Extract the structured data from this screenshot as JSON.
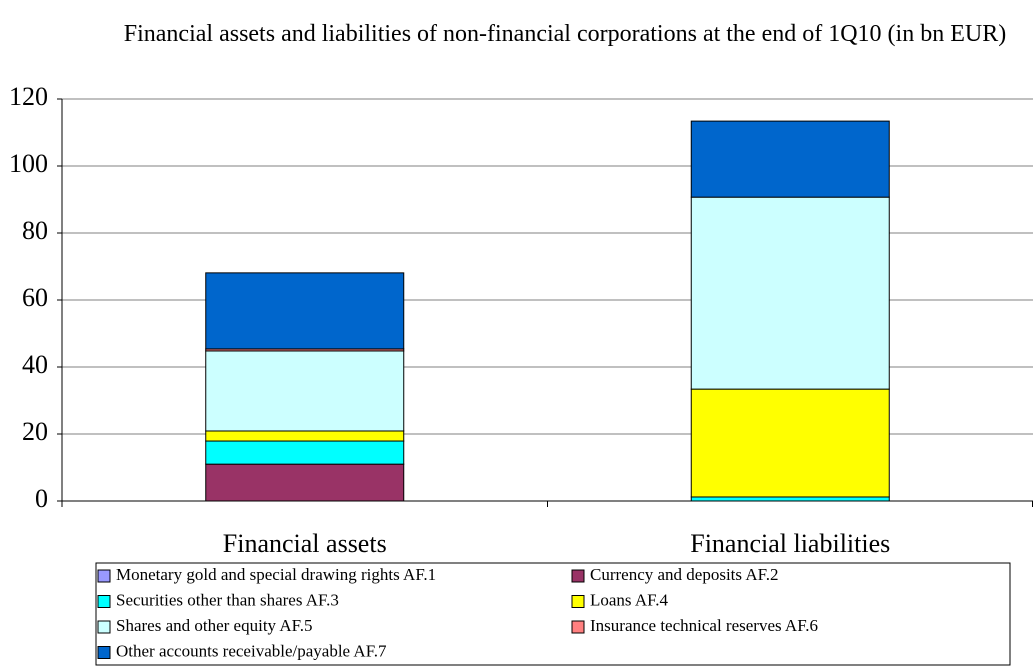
{
  "chart_data": {
    "type": "stacked_bar",
    "title": "Financial assets and liabilities of non-financial corporations at the end of 1Q10 (in bn EUR)",
    "categories": [
      "Financial assets",
      "Financial liabilities"
    ],
    "series": [
      {
        "name": "Monetary gold and special drawing rights AF.1",
        "color": "#9999ff",
        "values": [
          0,
          0
        ]
      },
      {
        "name": "Currency and deposits AF.2",
        "color": "#993366",
        "values": [
          11.0,
          0
        ]
      },
      {
        "name": "Securities other than shares AF.3",
        "color": "#00ffff",
        "values": [
          6.9,
          1.2
        ]
      },
      {
        "name": "Loans AF.4",
        "color": "#ffff00",
        "values": [
          3.0,
          32.2
        ]
      },
      {
        "name": "Shares and other equity AF.5",
        "color": "#ccffff",
        "values": [
          23.9,
          57.3
        ]
      },
      {
        "name": "Insurance technical reserves AF.6",
        "color": "#ff8080",
        "values": [
          0.6,
          0
        ]
      },
      {
        "name": "Other accounts receivable/payable AF.7",
        "color": "#0066cc",
        "values": [
          22.7,
          22.7
        ]
      }
    ],
    "ylim": [
      0,
      120
    ],
    "yticks": [
      0,
      20,
      40,
      60,
      80,
      100,
      120
    ],
    "grid": true,
    "legend": "bottom"
  }
}
